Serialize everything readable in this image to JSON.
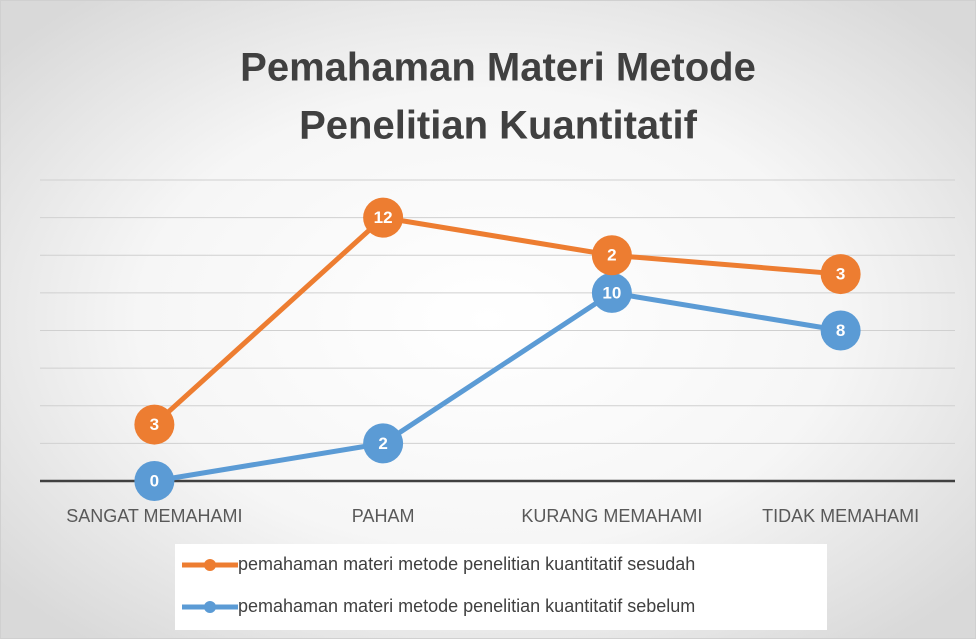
{
  "chart_data": {
    "type": "line",
    "stacked": true,
    "title": "Pemahaman Materi Metode",
    "subtitle": "Penelitian Kuantitatif",
    "categories": [
      "SANGAT MEMAHAMI",
      "PAHAM",
      "KURANG MEMAHAMI",
      "TIDAK MEMAHAMI"
    ],
    "series": [
      {
        "name": "pemahaman materi metode penelitian kuantitatif  sesudah",
        "color": "#ed7d31",
        "values": [
          3,
          12,
          2,
          3
        ]
      },
      {
        "name": "pemahaman materi metode penelitian kuantitatif  sebelum",
        "color": "#5b9bd5",
        "values": [
          0,
          2,
          10,
          8
        ]
      }
    ],
    "ylim": [
      0,
      16
    ],
    "yticks": [
      0,
      2,
      4,
      6,
      8,
      10,
      12,
      14,
      16
    ],
    "grid": true,
    "legend": "bottom"
  }
}
